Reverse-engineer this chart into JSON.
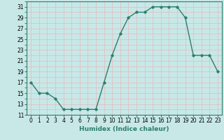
{
  "xlabel": "Humidex (Indice chaleur)",
  "x": [
    0,
    1,
    2,
    3,
    4,
    5,
    6,
    7,
    8,
    9,
    10,
    11,
    12,
    13,
    14,
    15,
    16,
    17,
    18,
    19,
    20,
    21,
    22,
    23
  ],
  "y": [
    17,
    15,
    15,
    14,
    12,
    12,
    12,
    12,
    12,
    17,
    22,
    26,
    29,
    30,
    30,
    31,
    31,
    31,
    31,
    29,
    22,
    22,
    22,
    19
  ],
  "line_color": "#2e7d6e",
  "marker": "D",
  "marker_size": 1.8,
  "bg_color": "#c8e8e8",
  "grid_color": "#e8b8b8",
  "xlim": [
    -0.5,
    23.5
  ],
  "ylim": [
    11,
    32
  ],
  "yticks": [
    11,
    13,
    15,
    17,
    19,
    21,
    23,
    25,
    27,
    29,
    31
  ],
  "xticks": [
    0,
    1,
    2,
    3,
    4,
    5,
    6,
    7,
    8,
    9,
    10,
    11,
    12,
    13,
    14,
    15,
    16,
    17,
    18,
    19,
    20,
    21,
    22,
    23
  ],
  "tick_fontsize": 5.5,
  "xlabel_fontsize": 6.5,
  "line_width": 1.0
}
